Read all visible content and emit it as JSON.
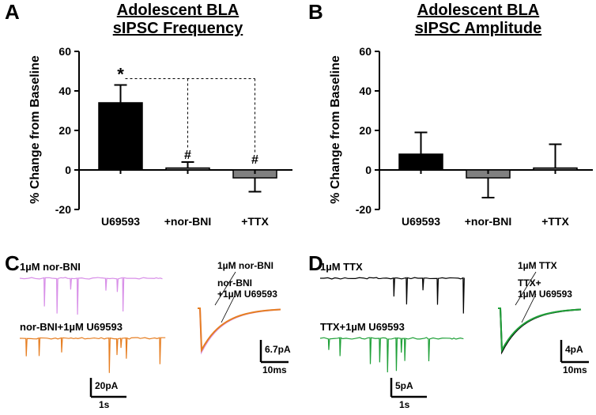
{
  "panelA": {
    "label": "A",
    "title": "Adolescent BLA\nsIPSC Frequency",
    "ylabel": "% Change from Baseline",
    "ylim": [
      -20,
      60
    ],
    "yticks": [
      -20,
      0,
      20,
      40,
      60
    ],
    "categories": [
      "U69593",
      "+nor-BNI",
      "+TTX"
    ],
    "values": [
      34,
      1,
      -4
    ],
    "errs": [
      9,
      3,
      7
    ],
    "bar_colors": [
      "#000000",
      "#808080",
      "#808080"
    ],
    "sig_marks": {
      "star_idx": 0,
      "hash_idx": [
        1,
        2
      ]
    }
  },
  "panelB": {
    "label": "B",
    "title": "Adolescent BLA\nsIPSC Amplitude",
    "ylabel": "% Change from Baseline",
    "ylim": [
      -20,
      60
    ],
    "yticks": [
      -20,
      0,
      20,
      40,
      60
    ],
    "categories": [
      "U69593",
      "+nor-BNI",
      "+TTX"
    ],
    "values": [
      8,
      -4,
      1
    ],
    "errs": [
      11,
      10,
      12
    ],
    "bar_colors": [
      "#000000",
      "#808080",
      "#808080"
    ]
  },
  "panelC": {
    "label": "C",
    "trace1_label": "1µM nor-BNI",
    "trace2_label": "nor-BNI+1µM U69593",
    "avg1_label": "1µM nor-BNI",
    "avg2_label": "nor-BNI\n+1µM U69593",
    "trace1_color": "#d88fe8",
    "trace2_color": "#e67e22",
    "scale_v": "6.7pA",
    "scale_h_avg": "10ms",
    "scale_v_trace": "20pA",
    "scale_h_trace": "1s"
  },
  "panelD": {
    "label": "D",
    "trace1_label": "1µM TTX",
    "trace2_label": "TTX+1µM U69593",
    "avg1_label": "1µM TTX",
    "avg2_label": "TTX+\n1µM U69593",
    "trace1_color": "#000000",
    "trace2_color": "#1fa038",
    "scale_v": "4pA",
    "scale_h_avg": "10ms",
    "scale_v_trace": "5pA",
    "scale_h_trace": "1s"
  }
}
